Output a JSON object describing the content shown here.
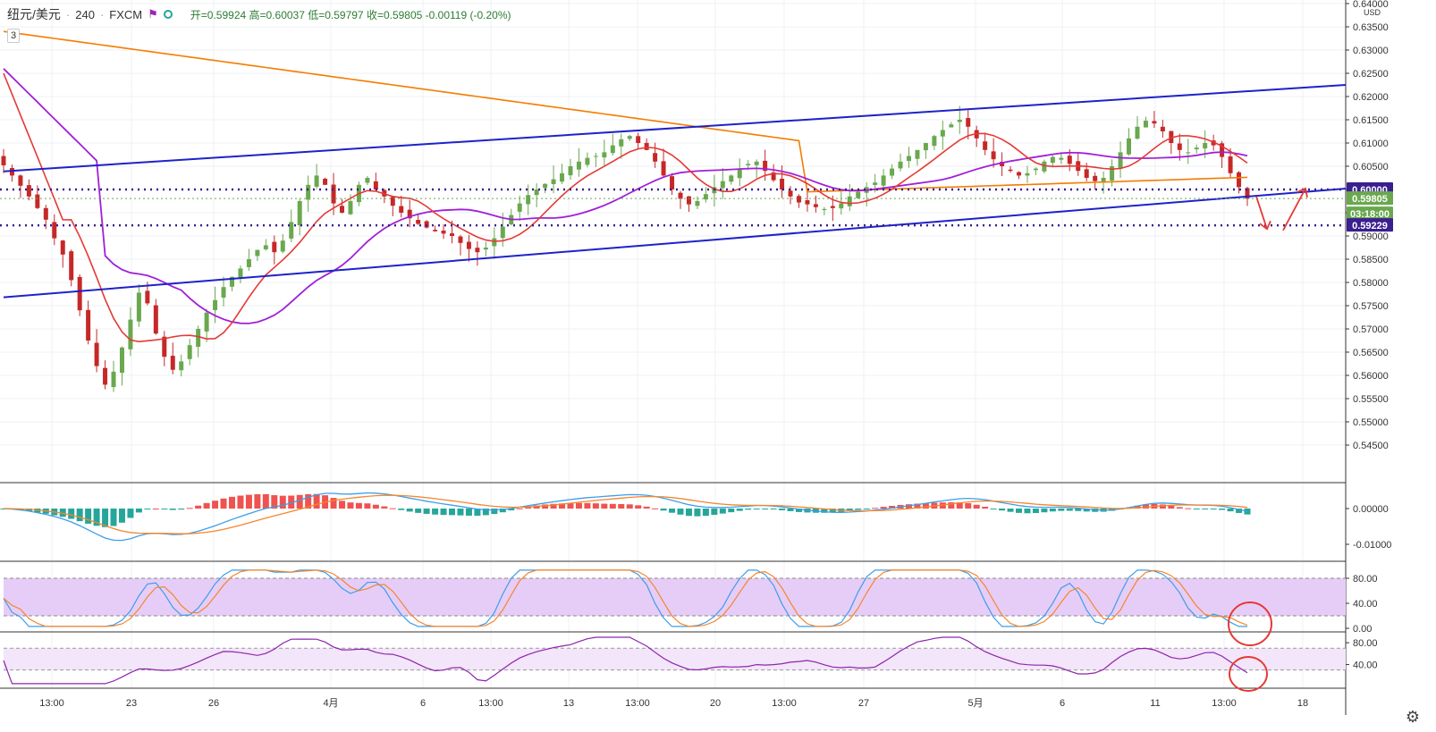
{
  "header": {
    "symbol": "纽元/美元",
    "interval": "240",
    "exchange": "FXCM",
    "ohlc_text": "开=0.59924 高=0.60037 低=0.59797 收=0.59805 -0.00119 (-0.20%)",
    "indicators_count": "3",
    "flag_icon": "flag-icon",
    "circle_icon": "circle-icon"
  },
  "currency": "USD",
  "colors": {
    "up": "#6aa84f",
    "down": "#c62828",
    "trend": "#1e22c8",
    "level": "#3a1f8f",
    "ma_red": "#e53935",
    "ma_orange": "#f57c00",
    "ma_purple": "#a020d8",
    "macd_blue": "#3d9ee8",
    "macd_orange": "#f5862d",
    "hist_up": "#ef5350",
    "hist_down": "#26a69a",
    "stoch_band": "#e6cdf7",
    "rsi_band": "#f3e5fa",
    "rsi_line": "#8e24aa",
    "annotation": "#e53935"
  },
  "settings_icon": "gear-icon",
  "chart_data": {
    "type": "candlestick",
    "title": "纽元/美元 · 240 · FXCM",
    "y_axis": {
      "unit": "USD",
      "ylim": [
        0.54,
        0.64
      ],
      "ticks": [
        "0.64000",
        "0.63500",
        "0.63000",
        "0.62500",
        "0.62000",
        "0.61500",
        "0.61000",
        "0.60500",
        "0.60000",
        "0.59500",
        "0.59000",
        "0.58500",
        "0.58000",
        "0.57500",
        "0.57000",
        "0.56500",
        "0.56000",
        "0.55500",
        "0.55000",
        "0.54500"
      ]
    },
    "x_axis": {
      "ticks": [
        "13:00",
        "23",
        "26",
        "4月",
        "6",
        "13:00",
        "13",
        "13:00",
        "20",
        "13:00",
        "27",
        "5月",
        "6",
        "11",
        "13:00",
        "18"
      ]
    },
    "price_labels": [
      {
        "value": "0.60000",
        "style": "level"
      },
      {
        "value": "0.59805",
        "style": "last"
      },
      {
        "value": "03:18:00",
        "style": "countdown"
      },
      {
        "value": "0.59229",
        "style": "level"
      }
    ],
    "horizontal_levels": [
      0.6,
      0.59229,
      0.59805
    ],
    "trendlines": [
      {
        "name": "upper channel",
        "from": [
          0,
          0.6039
        ],
        "to": [
          1,
          0.6225
        ]
      },
      {
        "name": "lower channel",
        "from": [
          0,
          0.5768
        ],
        "to": [
          1,
          0.6002
        ]
      }
    ],
    "candles_close": [
      0.6052,
      0.603,
      0.6008,
      0.5985,
      0.596,
      0.5935,
      0.5895,
      0.586,
      0.5805,
      0.574,
      0.5675,
      0.562,
      0.558,
      0.5608,
      0.566,
      0.572,
      0.5778,
      0.5755,
      0.569,
      0.564,
      0.5612,
      0.563,
      0.5665,
      0.57,
      0.5735,
      0.5762,
      0.579,
      0.5812,
      0.583,
      0.585,
      0.587,
      0.588,
      0.5865,
      0.589,
      0.593,
      0.5975,
      0.601,
      0.603,
      0.601,
      0.597,
      0.595,
      0.5975,
      0.601,
      0.6025,
      0.6,
      0.5985,
      0.5965,
      0.595,
      0.5938,
      0.5926,
      0.5918,
      0.591,
      0.5905,
      0.59,
      0.5885,
      0.5872,
      0.5865,
      0.5875,
      0.5895,
      0.592,
      0.5945,
      0.597,
      0.5988,
      0.6,
      0.6012,
      0.6022,
      0.6035,
      0.605,
      0.606,
      0.6068,
      0.6072,
      0.608,
      0.6095,
      0.6108,
      0.6115,
      0.61,
      0.6085,
      0.606,
      0.603,
      0.6,
      0.598,
      0.5968,
      0.5975,
      0.599,
      0.6005,
      0.6018,
      0.603,
      0.6045,
      0.6055,
      0.606,
      0.604,
      0.602,
      0.6,
      0.5985,
      0.5972,
      0.5968,
      0.5962,
      0.5958,
      0.596,
      0.597,
      0.5985,
      0.5995,
      0.6005,
      0.6015,
      0.603,
      0.6045,
      0.606,
      0.6072,
      0.6085,
      0.61,
      0.6115,
      0.6128,
      0.614,
      0.615,
      0.6135,
      0.611,
      0.6085,
      0.6065,
      0.605,
      0.604,
      0.603,
      0.6035,
      0.6045,
      0.606,
      0.607,
      0.6068,
      0.6055,
      0.604,
      0.6025,
      0.6018,
      0.6025,
      0.605,
      0.608,
      0.611,
      0.6135,
      0.6148,
      0.6142,
      0.6125,
      0.61,
      0.6085,
      0.608,
      0.609,
      0.61,
      0.6095,
      0.607,
      0.6035,
      0.6005,
      0.598
    ]
  },
  "macd": {
    "y_ticks": [
      "0.00000",
      "-0.01000"
    ]
  },
  "stochastic": {
    "y_ticks": [
      "80.00",
      "40.00",
      "0.00"
    ]
  },
  "rsi": {
    "y_ticks": [
      "80.00",
      "40.00"
    ]
  }
}
